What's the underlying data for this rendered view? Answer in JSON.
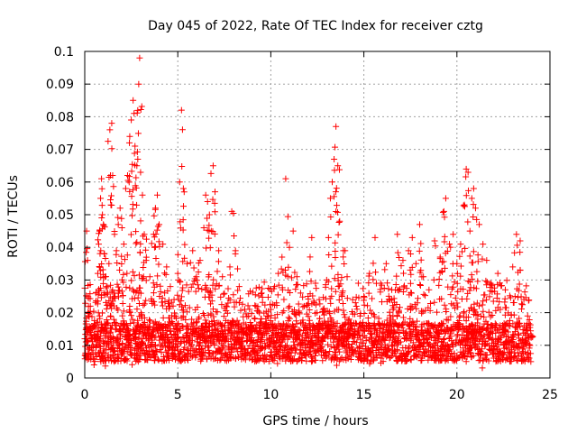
{
  "chart_data": {
    "type": "scatter",
    "title": "Day 045 of 2022, Rate Of TEC Index for receiver cztg",
    "xlabel": "GPS time / hours",
    "ylabel": "ROTI / TECUs",
    "xlim": [
      0,
      25
    ],
    "ylim": [
      0,
      0.1
    ],
    "x_ticks": [
      0,
      5,
      10,
      15,
      20,
      25
    ],
    "x_tick_labels": [
      "0",
      "5",
      "10",
      "15",
      "20",
      "25"
    ],
    "y_ticks": [
      0,
      0.01,
      0.02,
      0.03,
      0.04,
      0.05,
      0.06,
      0.07,
      0.08,
      0.09,
      0.1
    ],
    "y_tick_labels": [
      "0",
      "0.01",
      "0.02",
      "0.03",
      "0.04",
      "0.05",
      "0.06",
      "0.07",
      "0.08",
      "0.09",
      "0.1"
    ],
    "grid": true,
    "marker": "+",
    "marker_color": "#ff0000",
    "series": [
      {
        "name": "ROTI",
        "points": [
          [
            0.0,
            0.012
          ],
          [
            0.1,
            0.045
          ],
          [
            0.15,
            0.036
          ],
          [
            0.2,
            0.019
          ],
          [
            0.3,
            0.022
          ],
          [
            0.4,
            0.015
          ],
          [
            0.5,
            0.004
          ],
          [
            0.6,
            0.026
          ],
          [
            0.7,
            0.032
          ],
          [
            0.75,
            0.041
          ],
          [
            0.8,
            0.045
          ],
          [
            0.85,
            0.055
          ],
          [
            0.9,
            0.061
          ],
          [
            0.95,
            0.05
          ],
          [
            1.0,
            0.047
          ],
          [
            1.05,
            0.038
          ],
          [
            1.1,
            0.031
          ],
          [
            1.2,
            0.028
          ],
          [
            1.3,
            0.035
          ],
          [
            1.35,
            0.076
          ],
          [
            1.45,
            0.078
          ],
          [
            1.5,
            0.062
          ],
          [
            1.6,
            0.044
          ],
          [
            1.7,
            0.039
          ],
          [
            1.8,
            0.047
          ],
          [
            1.9,
            0.052
          ],
          [
            2.0,
            0.046
          ],
          [
            2.1,
            0.041
          ],
          [
            2.2,
            0.058
          ],
          [
            2.3,
            0.062
          ],
          [
            2.4,
            0.072
          ],
          [
            2.5,
            0.079
          ],
          [
            2.6,
            0.085
          ],
          [
            2.65,
            0.081
          ],
          [
            2.7,
            0.071
          ],
          [
            2.8,
            0.065
          ],
          [
            2.85,
            0.067
          ],
          [
            2.9,
            0.09
          ],
          [
            2.95,
            0.098
          ],
          [
            3.0,
            0.063
          ],
          [
            3.1,
            0.056
          ],
          [
            3.2,
            0.044
          ],
          [
            3.3,
            0.036
          ],
          [
            3.5,
            0.031
          ],
          [
            3.7,
            0.044
          ],
          [
            3.8,
            0.052
          ],
          [
            3.9,
            0.056
          ],
          [
            4.0,
            0.047
          ],
          [
            4.2,
            0.041
          ],
          [
            4.4,
            0.034
          ],
          [
            4.6,
            0.028
          ],
          [
            4.8,
            0.024
          ],
          [
            5.0,
            0.032
          ],
          [
            5.1,
            0.06
          ],
          [
            5.2,
            0.082
          ],
          [
            5.3,
            0.058
          ],
          [
            5.5,
            0.035
          ],
          [
            5.8,
            0.039
          ],
          [
            6.0,
            0.031
          ],
          [
            6.2,
            0.036
          ],
          [
            6.4,
            0.046
          ],
          [
            6.5,
            0.056
          ],
          [
            6.6,
            0.054
          ],
          [
            6.7,
            0.05
          ],
          [
            6.8,
            0.045
          ],
          [
            6.9,
            0.065
          ],
          [
            7.0,
            0.057
          ],
          [
            7.2,
            0.039
          ],
          [
            7.4,
            0.031
          ],
          [
            7.6,
            0.022
          ],
          [
            7.8,
            0.034
          ],
          [
            7.9,
            0.051
          ],
          [
            8.1,
            0.039
          ],
          [
            8.3,
            0.028
          ],
          [
            8.6,
            0.021
          ],
          [
            8.9,
            0.017
          ],
          [
            9.2,
            0.022
          ],
          [
            9.5,
            0.026
          ],
          [
            9.8,
            0.019
          ],
          [
            10.0,
            0.021
          ],
          [
            10.2,
            0.028
          ],
          [
            10.4,
            0.032
          ],
          [
            10.6,
            0.037
          ],
          [
            10.8,
            0.061
          ],
          [
            11.0,
            0.04
          ],
          [
            11.2,
            0.045
          ],
          [
            11.4,
            0.031
          ],
          [
            11.6,
            0.026
          ],
          [
            11.8,
            0.022
          ],
          [
            12.0,
            0.025
          ],
          [
            12.2,
            0.043
          ],
          [
            12.4,
            0.029
          ],
          [
            12.6,
            0.024
          ],
          [
            12.8,
            0.021
          ],
          [
            13.0,
            0.03
          ],
          [
            13.1,
            0.043
          ],
          [
            13.2,
            0.055
          ],
          [
            13.3,
            0.06
          ],
          [
            13.4,
            0.067
          ],
          [
            13.5,
            0.077
          ],
          [
            13.6,
            0.065
          ],
          [
            13.7,
            0.048
          ],
          [
            13.9,
            0.039
          ],
          [
            14.1,
            0.031
          ],
          [
            14.4,
            0.024
          ],
          [
            14.7,
            0.029
          ],
          [
            15.0,
            0.025
          ],
          [
            15.3,
            0.032
          ],
          [
            15.6,
            0.043
          ],
          [
            15.9,
            0.029
          ],
          [
            16.2,
            0.035
          ],
          [
            16.5,
            0.027
          ],
          [
            16.8,
            0.044
          ],
          [
            17.1,
            0.036
          ],
          [
            17.4,
            0.039
          ],
          [
            17.6,
            0.043
          ],
          [
            17.8,
            0.035
          ],
          [
            18.0,
            0.047
          ],
          [
            18.2,
            0.031
          ],
          [
            18.5,
            0.027
          ],
          [
            18.8,
            0.042
          ],
          [
            19.1,
            0.037
          ],
          [
            19.3,
            0.051
          ],
          [
            19.4,
            0.055
          ],
          [
            19.6,
            0.041
          ],
          [
            19.8,
            0.044
          ],
          [
            20.0,
            0.035
          ],
          [
            20.2,
            0.041
          ],
          [
            20.4,
            0.053
          ],
          [
            20.5,
            0.064
          ],
          [
            20.6,
            0.063
          ],
          [
            20.7,
            0.045
          ],
          [
            20.8,
            0.055
          ],
          [
            20.9,
            0.058
          ],
          [
            21.0,
            0.052
          ],
          [
            21.2,
            0.047
          ],
          [
            21.4,
            0.041
          ],
          [
            21.6,
            0.036
          ],
          [
            21.8,
            0.029
          ],
          [
            22.2,
            0.032
          ],
          [
            22.6,
            0.027
          ],
          [
            23.0,
            0.034
          ],
          [
            23.2,
            0.044
          ],
          [
            23.4,
            0.042
          ],
          [
            23.6,
            0.024
          ],
          [
            23.8,
            0.019
          ],
          [
            24.0,
            0.013
          ]
        ],
        "band": {
          "x_start": 0,
          "x_end": 24,
          "step": 0.05,
          "floor": 0.003,
          "typical_min": 0.005,
          "typical_max": 0.022
        }
      }
    ]
  }
}
